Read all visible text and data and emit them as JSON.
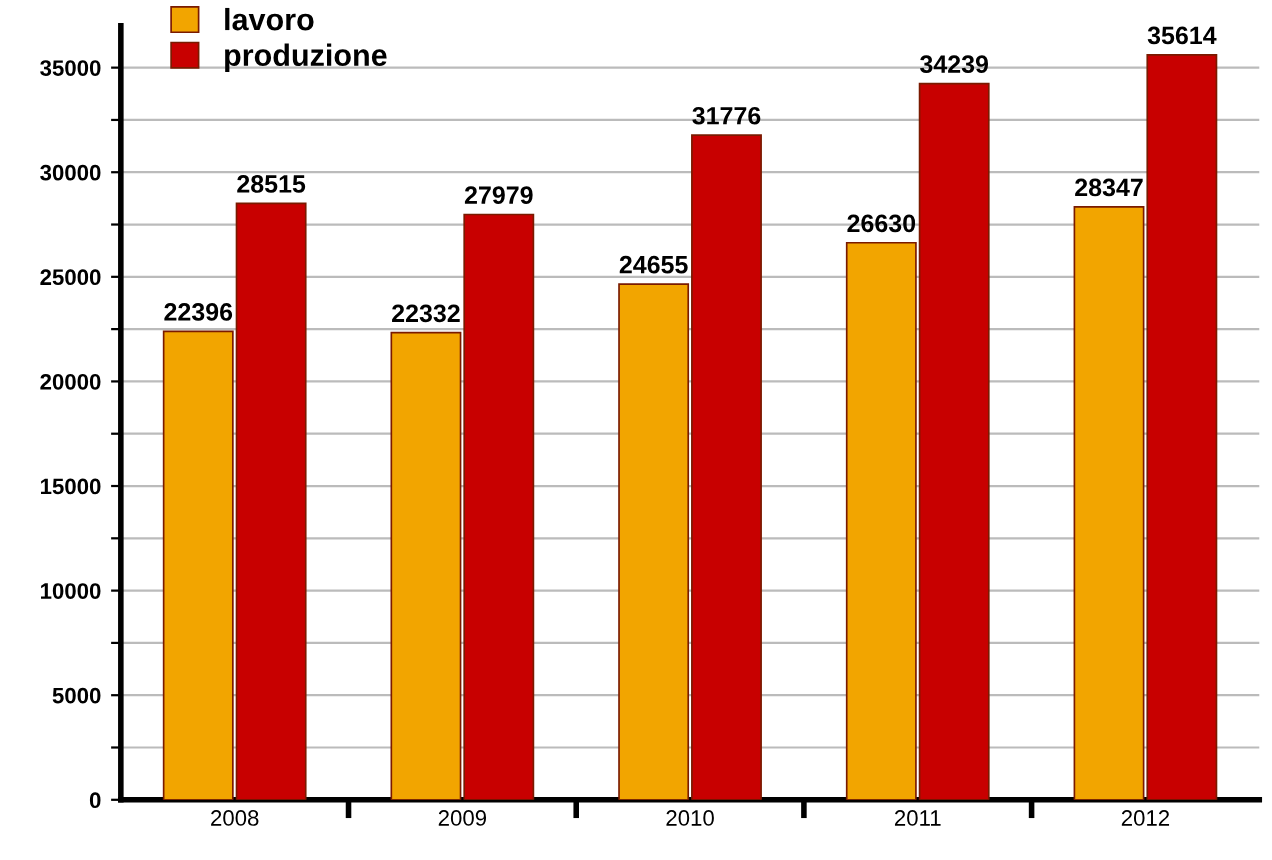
{
  "chart_data": {
    "type": "bar",
    "categories": [
      "2008",
      "2009",
      "2010",
      "2011",
      "2012"
    ],
    "series": [
      {
        "name": "lavoro",
        "color": "#f2a500",
        "values": [
          22396,
          22332,
          24655,
          26630,
          28347
        ]
      },
      {
        "name": "produzione",
        "color": "#c80000",
        "values": [
          28515,
          27979,
          31776,
          34239,
          35614
        ]
      }
    ],
    "ylim": [
      0,
      37000
    ],
    "yticks": [
      0,
      {
        "value": 2500,
        "label": null
      },
      5000,
      {
        "value": 7500,
        "label": null
      },
      10000,
      {
        "value": 12500,
        "label": null
      },
      15000,
      {
        "value": 17500,
        "label": null
      },
      20000,
      {
        "value": 22500,
        "label": null
      },
      25000,
      {
        "value": 27500,
        "label": null
      },
      30000,
      {
        "value": 32500,
        "label": null
      },
      35000
    ],
    "grid": "y",
    "legend": "top left",
    "data_labels": true
  }
}
